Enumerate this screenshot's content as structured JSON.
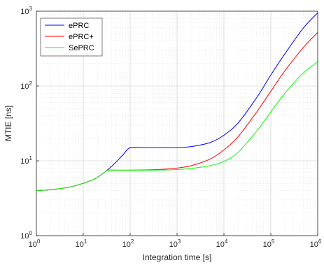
{
  "chart_data": {
    "type": "line",
    "xlabel": "Integration time [s]",
    "ylabel": "MTIE [ns]",
    "xscale": "log",
    "yscale": "log",
    "xlim": [
      1,
      1000000
    ],
    "ylim": [
      1,
      1000
    ],
    "grid": true,
    "minor_grid": true,
    "legend_position": "top-left",
    "x_ticks": [
      {
        "base": "10",
        "exp": "0"
      },
      {
        "base": "10",
        "exp": "1"
      },
      {
        "base": "10",
        "exp": "2"
      },
      {
        "base": "10",
        "exp": "3"
      },
      {
        "base": "10",
        "exp": "4"
      },
      {
        "base": "10",
        "exp": "5"
      },
      {
        "base": "10",
        "exp": "6"
      }
    ],
    "y_ticks": [
      {
        "base": "10",
        "exp": "0"
      },
      {
        "base": "10",
        "exp": "1"
      },
      {
        "base": "10",
        "exp": "2"
      },
      {
        "base": "10",
        "exp": "3"
      }
    ],
    "series": [
      {
        "name": "ePRC",
        "color": "#0000ff",
        "x": [
          1,
          2,
          5,
          10,
          15,
          20,
          30,
          40,
          50,
          70,
          100,
          200,
          500,
          1000,
          2000,
          5000,
          10000,
          20000,
          50000,
          100000,
          200000,
          500000,
          1000000
        ],
        "y": [
          4,
          4.1,
          4.45,
          5.0,
          5.5,
          6.0,
          7.2,
          8.4,
          9.6,
          12.0,
          15,
          15,
          15,
          15,
          15.5,
          17.5,
          22,
          32,
          70,
          140,
          270,
          600,
          950
        ]
      },
      {
        "name": "ePRC+",
        "color": "#ff0000",
        "x": [
          1,
          2,
          5,
          10,
          15,
          20,
          30,
          35,
          50,
          100,
          200,
          500,
          1000,
          2000,
          5000,
          10000,
          20000,
          50000,
          100000,
          200000,
          500000,
          1000000
        ],
        "y": [
          4,
          4.1,
          4.45,
          5.0,
          5.5,
          6.0,
          7.2,
          7.5,
          7.5,
          7.5,
          7.55,
          7.7,
          8.0,
          8.6,
          10.5,
          14,
          21,
          45,
          85,
          160,
          330,
          520
        ]
      },
      {
        "name": "SePRC",
        "color": "#00ff00",
        "x": [
          1,
          2,
          5,
          10,
          15,
          20,
          30,
          35,
          50,
          100,
          200,
          500,
          1000,
          2000,
          5000,
          10000,
          20000,
          50000,
          100000,
          200000,
          500000,
          1000000
        ],
        "y": [
          4,
          4.1,
          4.45,
          5.0,
          5.5,
          6.0,
          7.2,
          7.5,
          7.5,
          7.5,
          7.5,
          7.55,
          7.65,
          7.9,
          8.6,
          9.8,
          13,
          25,
          45,
          80,
          150,
          210
        ]
      }
    ]
  }
}
